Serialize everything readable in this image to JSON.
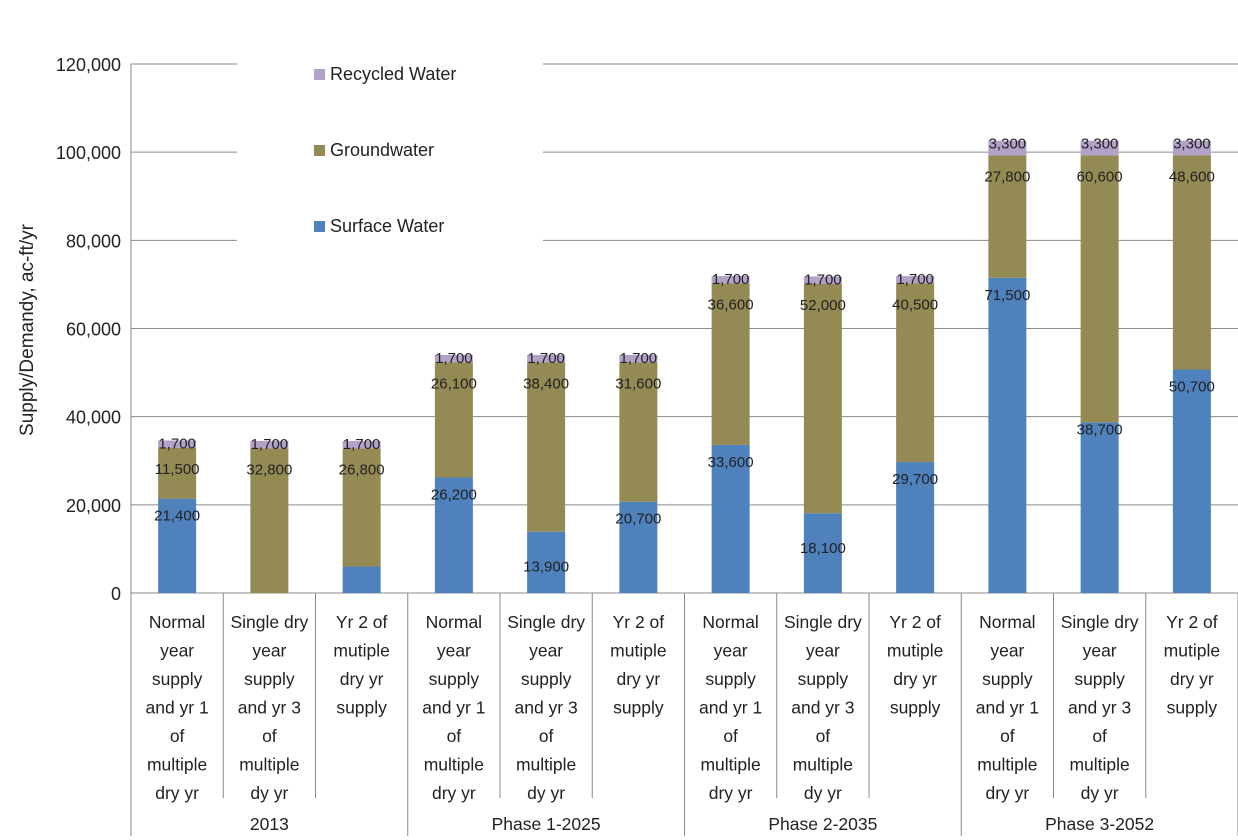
{
  "chart_data": {
    "type": "bar",
    "stacked": true,
    "ylabel": "Supply/Demandy,  ac-ft/yr",
    "xlabel": "",
    "title": "",
    "ylim": [
      0,
      120000
    ],
    "yticks": [
      "0",
      "20,000",
      "40,000",
      "60,000",
      "80,000",
      "100,000",
      "120,000"
    ],
    "ytick_values": [
      0,
      20000,
      40000,
      60000,
      80000,
      100000,
      120000
    ],
    "grid": true,
    "legend_position": "top-left inside",
    "groups": [
      {
        "label": "2013",
        "count": 3
      },
      {
        "label": "Phase 1-2025",
        "count": 3
      },
      {
        "label": "Phase 2-2035",
        "count": 3
      },
      {
        "label": "Phase 3-2052",
        "count": 3
      }
    ],
    "categories": [
      [
        "Normal",
        "year",
        "supply",
        "and yr 1",
        "of",
        "multiple",
        "dry yr"
      ],
      [
        "Single dry",
        "year",
        "supply",
        "and yr 3",
        "of",
        "multiple",
        "dy yr"
      ],
      [
        "Yr 2 of",
        "mutiple",
        "dry yr",
        "supply"
      ],
      [
        "Normal",
        "year",
        "supply",
        "and yr 1",
        "of",
        "multiple",
        "dry yr"
      ],
      [
        "Single dry",
        "year",
        "supply",
        "and yr 3",
        "of",
        "multiple",
        "dy yr"
      ],
      [
        "Yr 2 of",
        "mutiple",
        "dry yr",
        "supply"
      ],
      [
        "Normal",
        "year",
        "supply",
        "and yr 1",
        "of",
        "multiple",
        "dry yr"
      ],
      [
        "Single dry",
        "year",
        "supply",
        "and yr 3",
        "of",
        "multiple",
        "dy yr"
      ],
      [
        "Yr 2 of",
        "mutiple",
        "dry yr",
        "supply"
      ],
      [
        "Normal",
        "year",
        "supply",
        "and yr 1",
        "of",
        "multiple",
        "dry yr"
      ],
      [
        "Single dry",
        "year",
        "supply",
        "and yr 3",
        "of",
        "multiple",
        "dy yr"
      ],
      [
        "Yr 2 of",
        "mutiple",
        "dry yr",
        "supply"
      ]
    ],
    "series": [
      {
        "name": "Surface Water",
        "color": "#4f81bd",
        "values": [
          21400,
          0,
          6000,
          26200,
          13900,
          20700,
          33600,
          18100,
          29700,
          71500,
          38700,
          50700
        ],
        "labels": [
          "21,400",
          "",
          "",
          "26,200",
          "13,900",
          "20,700",
          "33,600",
          "18,100",
          "29,700",
          "71,500",
          "38,700",
          "50,700"
        ]
      },
      {
        "name": "Groundwater",
        "color": "#948a54",
        "values": [
          11500,
          32800,
          26800,
          26100,
          38400,
          31600,
          36600,
          52000,
          40500,
          27800,
          60600,
          48600
        ],
        "labels": [
          "11,500",
          "32,800",
          "26,800",
          "26,100",
          "38,400",
          "31,600",
          "36,600",
          "52,000",
          "40,500",
          "27,800",
          "60,600",
          "48,600"
        ]
      },
      {
        "name": "Recycled Water",
        "color": "#b3a2c7",
        "values": [
          1700,
          1700,
          1700,
          1700,
          1700,
          1700,
          1700,
          1700,
          1700,
          3300,
          3300,
          3300
        ],
        "labels": [
          "1,700",
          "1,700",
          "1,700",
          "1,700",
          "1,700",
          "1,700",
          "1,700",
          "1,700",
          "1,700",
          "3,300",
          "3,300",
          "3,300"
        ]
      }
    ],
    "legend_order": [
      "Recycled Water",
      "Groundwater",
      "Surface Water"
    ]
  }
}
